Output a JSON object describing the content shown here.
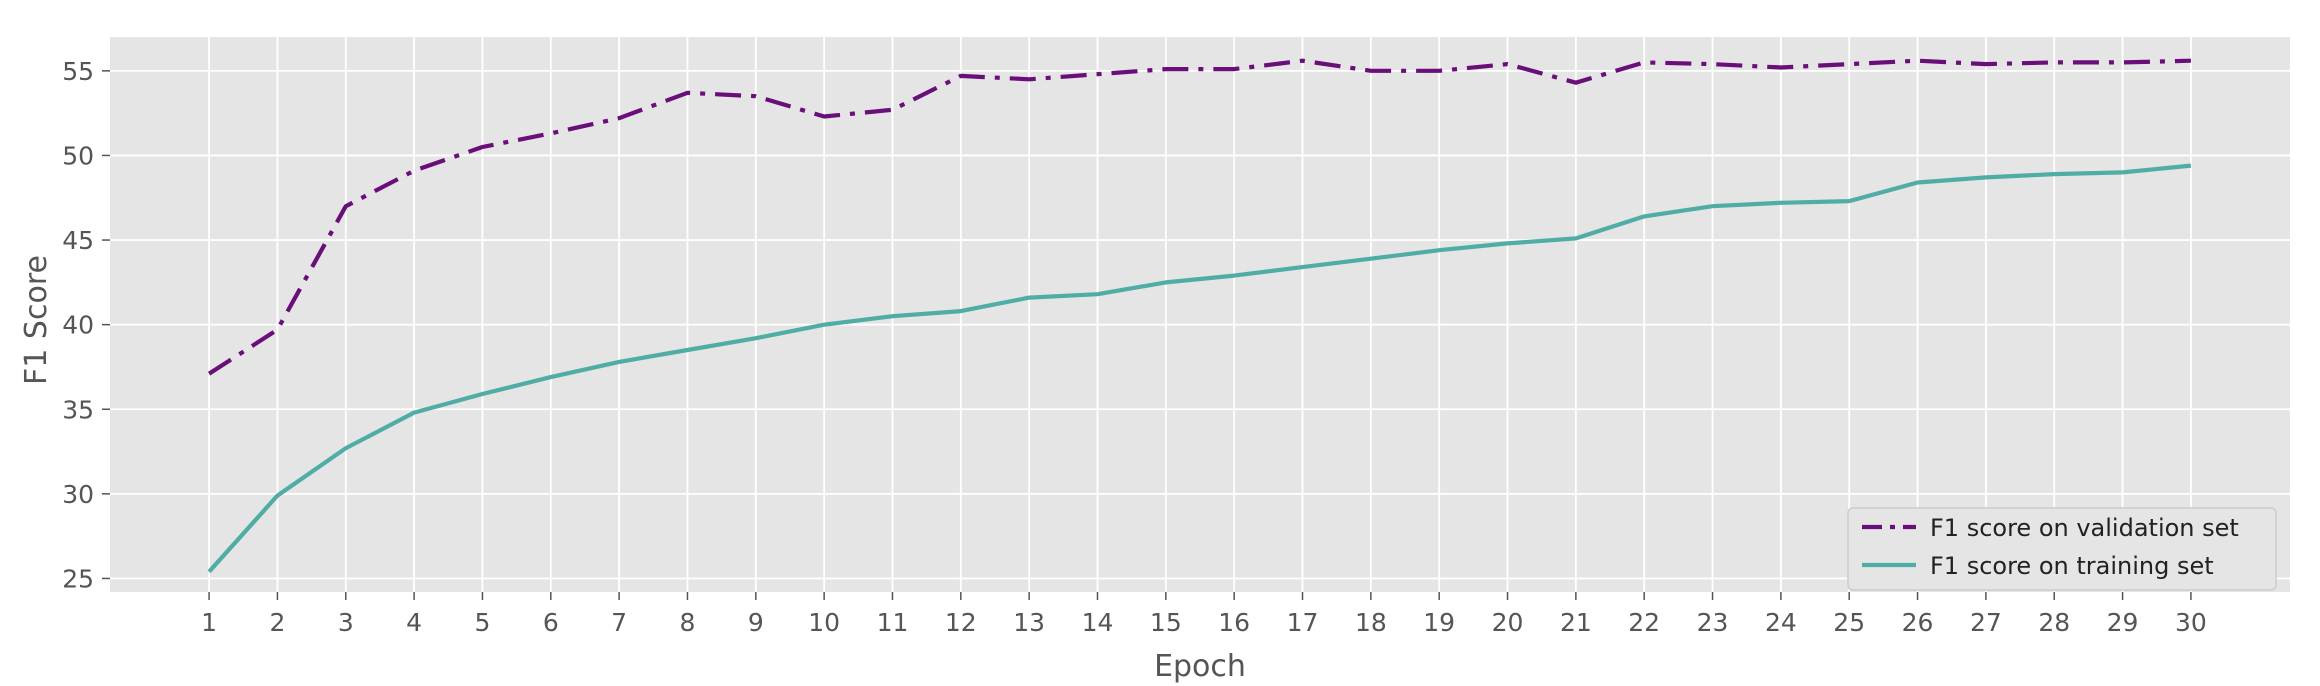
{
  "chart_data": {
    "type": "line",
    "title": "",
    "xlabel": "Epoch",
    "ylabel": "F1 Score",
    "x": [
      1,
      2,
      3,
      4,
      5,
      6,
      7,
      8,
      9,
      10,
      11,
      12,
      13,
      14,
      15,
      16,
      17,
      18,
      19,
      20,
      21,
      22,
      23,
      24,
      25,
      26,
      27,
      28,
      29,
      30
    ],
    "xlim": [
      -0.45,
      31.45
    ],
    "ylim": [
      24.2,
      57.0
    ],
    "yticks": [
      25,
      30,
      35,
      40,
      45,
      50,
      55
    ],
    "grid": true,
    "legend_position": "lower-right",
    "series": [
      {
        "name": "F1 score on validation set",
        "style": "dashdot",
        "color": "#6a0e7a",
        "values": [
          37.1,
          39.7,
          47.0,
          49.1,
          50.5,
          51.3,
          52.2,
          53.7,
          53.5,
          52.3,
          52.7,
          54.7,
          54.5,
          54.8,
          55.1,
          55.1,
          55.6,
          55.0,
          55.0,
          55.4,
          54.3,
          55.5,
          55.4,
          55.2,
          55.4,
          55.6,
          55.4,
          55.5,
          55.5,
          55.6
        ]
      },
      {
        "name": "F1 score on training set",
        "style": "solid",
        "color": "#4fada6",
        "values": [
          25.4,
          29.9,
          32.7,
          34.8,
          35.9,
          36.9,
          37.8,
          38.5,
          39.2,
          40.0,
          40.5,
          40.8,
          41.6,
          41.8,
          42.5,
          42.9,
          43.4,
          43.9,
          44.4,
          44.8,
          45.1,
          46.4,
          47.0,
          47.2,
          47.3,
          48.4,
          48.7,
          48.9,
          49.0,
          49.4
        ]
      }
    ]
  }
}
